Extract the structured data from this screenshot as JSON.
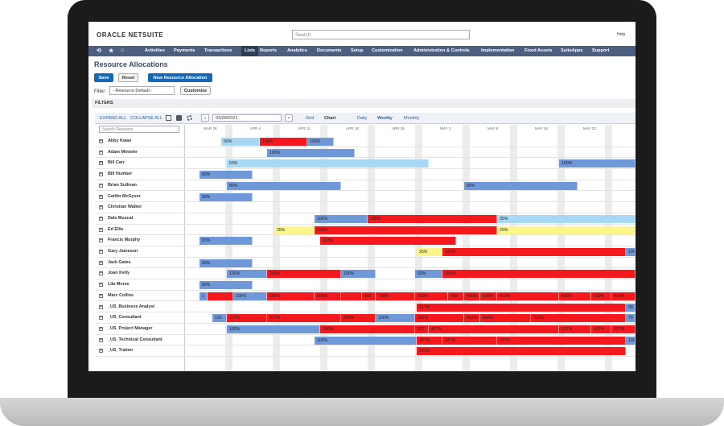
{
  "header": {
    "logo": "ORACLE NETSUITE",
    "search_placeholder": "Search",
    "help": "Help"
  },
  "nav": [
    "Activities",
    "Payments",
    "Transactions",
    "Lists",
    "Reports",
    "Analytics",
    "Documents",
    "Setup",
    "Customization",
    "Administration & Controls",
    "Implementation",
    "Fixed Assets",
    "SuiteApps",
    "Support"
  ],
  "page": {
    "title": "Resource Allocations",
    "buttons": [
      "Save",
      "Reset",
      "New Resource Allocation"
    ],
    "filter_label": "Filter",
    "filter_value": "- Resource Default -",
    "customize": "Customize",
    "filters_heading": "FILTERS"
  },
  "toolbar": {
    "expand_all": "EXPAND ALL",
    "collapse_all": "COLLAPSE ALL",
    "date": "03/28/2021",
    "views": [
      "Grid",
      "Chart"
    ],
    "scales": [
      "Daily",
      "Weekly",
      "Monthly"
    ]
  },
  "gantt": {
    "search_placeholder": "Search Resource",
    "weeks": [
      "MAR 28",
      "APR 4",
      "APR 11",
      "APR 18",
      "APR 25",
      "MAY 2",
      "MAY 9",
      "MAY 16",
      "MAY 23"
    ],
    "rows": [
      {
        "name": "Abby Kwan",
        "bars": [
          {
            "label": "50%",
            "color": "#a9d8f5"
          },
          {
            "label": "150%",
            "color": "#f5181c"
          },
          {
            "label": "100%",
            "color": "#6f98d8"
          }
        ]
      },
      {
        "name": "Adam Minister",
        "bars": [
          {
            "label": "100%",
            "color": "#6f98d8"
          }
        ]
      },
      {
        "name": "Bill Carr",
        "bars": [
          {
            "label": "53%",
            "color": "#a9d8f5"
          },
          {
            "label": "100%",
            "color": "#6f98d8"
          }
        ]
      },
      {
        "name": "Bill Humber",
        "bars": [
          {
            "label": "83%",
            "color": "#6f98d8"
          }
        ]
      },
      {
        "name": "Brian Sullivan",
        "bars": [
          {
            "label": "80%",
            "color": "#6f98d8"
          },
          {
            "label": "80%",
            "color": "#6f98d8"
          }
        ]
      },
      {
        "name": "Caitlin McGyver",
        "bars": [
          {
            "label": "83%",
            "color": "#6f98d8"
          }
        ]
      },
      {
        "name": "Christian Walker",
        "bars": []
      },
      {
        "name": "Dale Muscat",
        "bars": [
          {
            "label": "100%",
            "color": "#6f98d8"
          },
          {
            "label": "135%",
            "color": "#f5181c"
          },
          {
            "label": "35%",
            "color": "#a9d8f5"
          }
        ]
      },
      {
        "name": "Ed Ellis",
        "bars": [
          {
            "label": "25%",
            "color": "#fbf58c"
          },
          {
            "label": "125%",
            "color": "#f5181c"
          },
          {
            "label": "25%",
            "color": "#fbf58c"
          }
        ]
      },
      {
        "name": "Francis Murphy",
        "bars": [
          {
            "label": "83%",
            "color": "#6f98d8"
          },
          {
            "label": "107%",
            "color": "#f5181c"
          }
        ]
      },
      {
        "name": "Gary Jameson",
        "bars": [
          {
            "label": "25%",
            "color": "#fbf58c"
          },
          {
            "label": "125%",
            "color": "#f5181c"
          },
          {
            "label": "100",
            "color": "#6f98d8"
          }
        ]
      },
      {
        "name": "Jack Gates",
        "bars": [
          {
            "label": "83%",
            "color": "#6f98d8"
          }
        ]
      },
      {
        "name": "Joan Kelly",
        "bars": [
          {
            "label": "100%",
            "color": "#6f98d8"
          },
          {
            "label": "200%",
            "color": "#f5181c"
          },
          {
            "label": "100%",
            "color": "#6f98d8"
          },
          {
            "label": "83%",
            "color": "#6f98d8"
          },
          {
            "label": "183%",
            "color": "#f5181c"
          }
        ]
      },
      {
        "name": "Lila Morse",
        "bars": [
          {
            "label": "83%",
            "color": "#6f98d8"
          }
        ]
      },
      {
        "name": "Marc Collins",
        "bars": [
          {
            "label": "1",
            "color": "#6f98d8"
          },
          {
            "color": "#f5181c"
          },
          {
            "label": "100%",
            "color": "#6f98d8"
          },
          {
            "label": "500%",
            "color": "#f5181c"
          },
          {
            "label": "600%",
            "color": "#f5181c"
          },
          {
            "color": "#f5181c"
          },
          {
            "label": "600",
            "color": "#f5181c"
          },
          {
            "label": "700%",
            "color": "#f5181c"
          },
          {
            "label": "300%",
            "color": "#f5181c"
          },
          {
            "label": "400",
            "color": "#f5181c"
          },
          {
            "label": "410%",
            "color": "#f5181c"
          },
          {
            "label": "510%",
            "color": "#f5181c"
          },
          {
            "label": "410%",
            "color": "#f5181c"
          },
          {
            "label": "411%",
            "color": "#f5181c"
          },
          {
            "label": "510%",
            "color": "#f5181c"
          },
          {
            "label": "410%",
            "color": "#f5181c"
          }
        ]
      },
      {
        "name": "_US_Business Analyst",
        "bars": [
          {
            "label": "317%",
            "color": "#f5181c"
          },
          {
            "label": "99",
            "color": "#6f98d8"
          }
        ]
      },
      {
        "name": "_US_Consultant",
        "bars": [
          {
            "label": "100",
            "color": "#6f98d8"
          },
          {
            "label": "217%",
            "color": "#f5181c"
          },
          {
            "label": "317%",
            "color": "#f5181c"
          },
          {
            "label": "200%",
            "color": "#f5181c"
          },
          {
            "label": "100%",
            "color": "#6f98d8"
          },
          {
            "label": "302%",
            "color": "#f5181c"
          },
          {
            "label": "361%",
            "color": "#f5181c"
          },
          {
            "label": "410%",
            "color": "#f5181c"
          },
          {
            "label": "310%",
            "color": "#f5181c"
          },
          {
            "label": "79",
            "color": "#6f98d8"
          }
        ]
      },
      {
        "name": "_US_Project Manager",
        "bars": [
          {
            "label": "100%",
            "color": "#6f98d8"
          },
          {
            "label": "300%",
            "color": "#f5181c"
          },
          {
            "label": "527",
            "color": "#f5181c"
          },
          {
            "label": "427%",
            "color": "#f5181c"
          },
          {
            "label": "527%",
            "color": "#f5181c"
          },
          {
            "label": "427%",
            "color": "#f5181c"
          },
          {
            "label": "327%",
            "color": "#f5181c"
          }
        ]
      },
      {
        "name": "_US_Technical Consultant",
        "bars": [
          {
            "label": "100%",
            "color": "#6f98d8"
          },
          {
            "label": "327%",
            "color": "#f5181c"
          },
          {
            "label": "327%",
            "color": "#f5181c"
          },
          {
            "label": "327%",
            "color": "#f5181c"
          },
          {
            "label": "100",
            "color": "#6f98d8"
          }
        ]
      },
      {
        "name": "_US_Trainer",
        "bars": [
          {
            "label": "227%",
            "color": "#f5181c"
          }
        ]
      }
    ]
  }
}
